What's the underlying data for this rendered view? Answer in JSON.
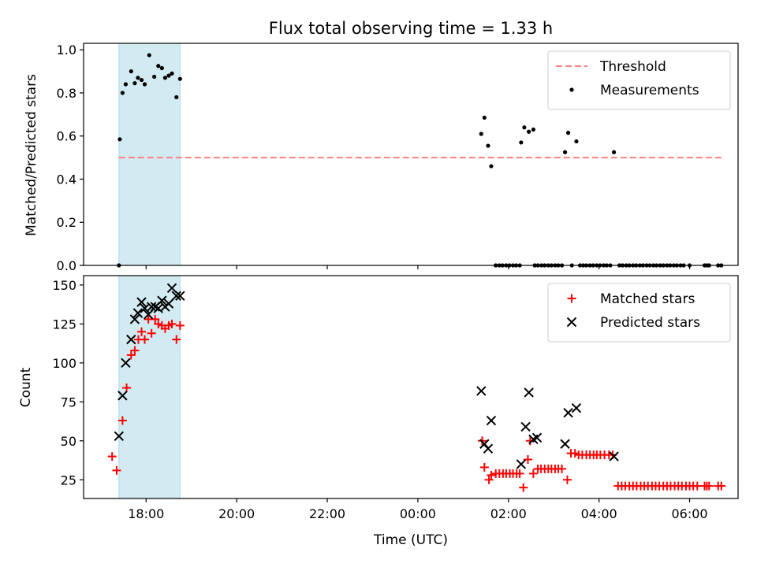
{
  "chart_data": [
    {
      "type": "scatter",
      "title": "Flux total observing time = 1.33 h",
      "xlabel": "",
      "ylabel": "Matched/Predicted stars",
      "ylim": [
        0,
        1.03
      ],
      "yticks": [
        "0.0",
        "0.2",
        "0.4",
        "0.6",
        "0.8",
        "1.0"
      ],
      "ytick_values": [
        0,
        0.2,
        0.4,
        0.6,
        0.8,
        1.0
      ],
      "xlim_hours": [
        16.62,
        31.07
      ],
      "xticks": [
        "18:00",
        "20:00",
        "22:00",
        "00:00",
        "02:00",
        "04:00",
        "06:00"
      ],
      "shaded_span_hours": [
        17.4,
        18.75
      ],
      "shade_color": "#add8e6",
      "legend_position": "upper right",
      "threshold": {
        "name": "Threshold",
        "y": 0.5,
        "x_range_hours": [
          17.4,
          30.7
        ],
        "color": "#ff7f7f",
        "style": "dashed"
      },
      "series": [
        {
          "name": "Measurements",
          "color": "#000000",
          "marker": "dot",
          "x_hours": [
            17.4,
            17.42,
            17.48,
            17.55,
            17.67,
            17.75,
            17.82,
            17.9,
            17.97,
            18.07,
            18.18,
            18.27,
            18.35,
            18.42,
            18.5,
            18.57,
            18.67,
            18.75,
            25.4,
            25.47,
            25.55,
            25.62,
            26.28,
            26.35,
            26.45,
            26.55,
            27.25,
            27.32,
            27.5,
            28.33
          ],
          "y": [
            0.0,
            0.585,
            0.8,
            0.84,
            0.9,
            0.845,
            0.87,
            0.86,
            0.84,
            0.975,
            0.875,
            0.925,
            0.915,
            0.87,
            0.88,
            0.89,
            0.78,
            0.865,
            0.61,
            0.685,
            0.555,
            0.46,
            0.57,
            0.64,
            0.62,
            0.63,
            0.525,
            0.615,
            0.575,
            0.525
          ]
        },
        {
          "name": "zero-measurements",
          "color": "#000000",
          "marker": "dot",
          "y_constant": 0.0,
          "x_hours": [
            25.72,
            25.8,
            25.87,
            25.95,
            26.02,
            26.1,
            26.17,
            26.25,
            26.58,
            26.65,
            26.73,
            26.8,
            26.88,
            26.95,
            27.03,
            27.1,
            27.18,
            27.4,
            27.58,
            27.65,
            27.72,
            27.8,
            27.87,
            27.95,
            28.02,
            28.1,
            28.17,
            28.25,
            28.45,
            28.52,
            28.6,
            28.67,
            28.75,
            28.82,
            28.9,
            28.97,
            29.05,
            29.12,
            29.2,
            29.27,
            29.35,
            29.42,
            29.5,
            29.57,
            29.65,
            29.72,
            29.8,
            29.87,
            30.0,
            30.33,
            30.38,
            30.43,
            30.63,
            30.7
          ]
        }
      ]
    },
    {
      "type": "scatter",
      "title": "",
      "xlabel": "Time (UTC)",
      "ylabel": "Count",
      "ylim": [
        13,
        156
      ],
      "yticks": [
        "25",
        "50",
        "75",
        "100",
        "125",
        "150"
      ],
      "ytick_values": [
        25,
        50,
        75,
        100,
        125,
        150
      ],
      "xlim_hours": [
        16.62,
        31.07
      ],
      "xticks": [
        "18:00",
        "20:00",
        "22:00",
        "00:00",
        "02:00",
        "04:00",
        "06:00"
      ],
      "shaded_span_hours": [
        17.4,
        18.75
      ],
      "shade_color": "#add8e6",
      "legend_position": "upper right",
      "series": [
        {
          "name": "Matched stars",
          "color": "#ff0000",
          "marker": "plus",
          "x_hours": [
            17.25,
            17.35,
            17.48,
            17.57,
            17.67,
            17.75,
            17.83,
            17.9,
            17.97,
            18.05,
            18.12,
            18.2,
            18.27,
            18.35,
            18.42,
            18.5,
            18.57,
            18.67,
            18.75,
            25.42,
            25.47,
            25.57,
            25.62,
            25.72,
            25.8,
            25.88,
            25.95,
            26.03,
            26.1,
            26.18,
            26.25,
            26.33,
            26.43,
            26.48,
            26.55,
            26.65,
            26.72,
            26.8,
            26.88,
            26.95,
            27.03,
            27.1,
            27.18,
            27.3,
            27.38,
            27.47,
            27.55,
            27.63,
            27.72,
            27.8,
            27.88,
            27.95,
            28.03,
            28.12,
            28.22,
            28.3,
            28.42,
            28.5,
            28.58,
            28.67,
            28.75,
            28.83,
            28.92,
            29.0,
            29.08,
            29.17,
            29.25,
            29.33,
            29.42,
            29.5,
            29.58,
            29.67,
            29.75,
            29.83,
            29.92,
            30.0,
            30.08,
            30.17,
            30.33,
            30.38,
            30.43,
            30.63,
            30.7
          ],
          "y": [
            40,
            31,
            63,
            84,
            105,
            108,
            115,
            120,
            115,
            128,
            119,
            128,
            125,
            124,
            122,
            124,
            125,
            115,
            124,
            50,
            33,
            25,
            28,
            29,
            29,
            29,
            29,
            29,
            29,
            29,
            29,
            20,
            38,
            50,
            29,
            32,
            32,
            32,
            32,
            32,
            32,
            32,
            32,
            25,
            42,
            42,
            41,
            41,
            41,
            41,
            41,
            41,
            41,
            41,
            41,
            41,
            21,
            21,
            21,
            21,
            21,
            21,
            21,
            21,
            21,
            21,
            21,
            21,
            21,
            21,
            21,
            21,
            21,
            21,
            21,
            21,
            21,
            21,
            21,
            21,
            21,
            21,
            21
          ]
        },
        {
          "name": "Predicted stars",
          "color": "#000000",
          "marker": "x",
          "x_hours": [
            17.4,
            17.48,
            17.55,
            17.67,
            17.75,
            17.82,
            17.9,
            17.97,
            18.05,
            18.12,
            18.2,
            18.27,
            18.35,
            18.42,
            18.5,
            18.57,
            18.67,
            18.75,
            25.4,
            25.47,
            25.55,
            25.62,
            26.28,
            26.38,
            26.45,
            26.55,
            26.63,
            27.25,
            27.32,
            27.5,
            28.33
          ],
          "y": [
            53,
            79,
            100,
            115,
            128,
            132,
            139,
            135,
            131,
            136,
            136,
            135,
            140,
            136,
            138,
            148,
            143,
            143,
            82,
            48,
            45,
            63,
            35,
            59,
            81,
            51,
            52,
            48,
            68,
            71,
            40
          ]
        }
      ]
    }
  ]
}
